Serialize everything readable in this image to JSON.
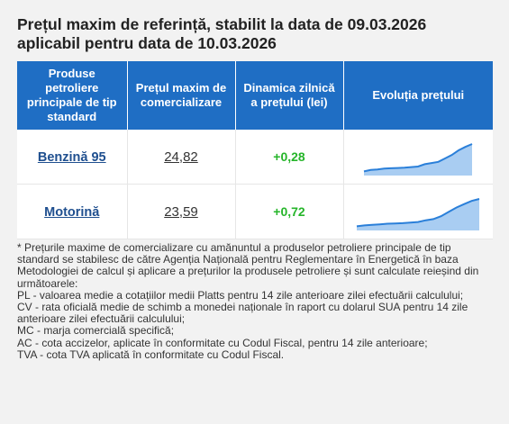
{
  "title": {
    "line1": "Prețul maxim de referință, stabilit la data de 09.03.2026",
    "line2": "aplicabil pentru data de 10.03.2026"
  },
  "table": {
    "headers": [
      "Produse petroliere principale de tip standard",
      "Prețul maxim de comercializare",
      "Dinamica zilnică a prețului (lei)",
      "Evoluția prețului"
    ],
    "rows": [
      {
        "product": "Benzină 95",
        "price": "24,82",
        "delta": "+0,28",
        "trend": [
          0.05,
          0.1,
          0.12,
          0.15,
          0.16,
          0.17,
          0.18,
          0.2,
          0.22,
          0.3,
          0.34,
          0.38,
          0.5,
          0.62,
          0.78,
          0.9,
          1.0
        ]
      },
      {
        "product": "Motorină",
        "price": "23,59",
        "delta": "+0,72",
        "trend": [
          0.05,
          0.08,
          0.1,
          0.12,
          0.14,
          0.15,
          0.16,
          0.18,
          0.2,
          0.26,
          0.3,
          0.4,
          0.55,
          0.7,
          0.82,
          0.93,
          1.0
        ]
      }
    ]
  },
  "notes": [
    "* Prețurile maxime de comercializare cu amănuntul a produselor petroliere principale de tip standard se stabilesc de către Agenția Națională pentru Reglementare în Energetică în baza Metodologiei de calcul și aplicare a prețurilor la produsele petroliere și sunt calculate reieșind din următoarele:",
    "PL - valoarea medie a cotațiilor medii Platts pentru 14 zile anterioare zilei efectuării calculului;",
    "CV - rata oficială medie de schimb a monedei naționale în raport cu dolarul SUA pentru 14 zile anterioare zilei efectuării calculului;",
    "MC - marja comercială specifică;",
    "AC - cota accizelor, aplicate în conformitate cu Codul Fiscal, pentru 14 zile anterioare;",
    "TVA - cota TVA aplicată în conformitate cu Codul Fiscal."
  ],
  "colors": {
    "header_bg": "#1f6ec4",
    "link": "#1f4f8f",
    "positive": "#26b52a",
    "spark_line": "#2a7fd9",
    "spark_fill": "#a9cdf2"
  }
}
